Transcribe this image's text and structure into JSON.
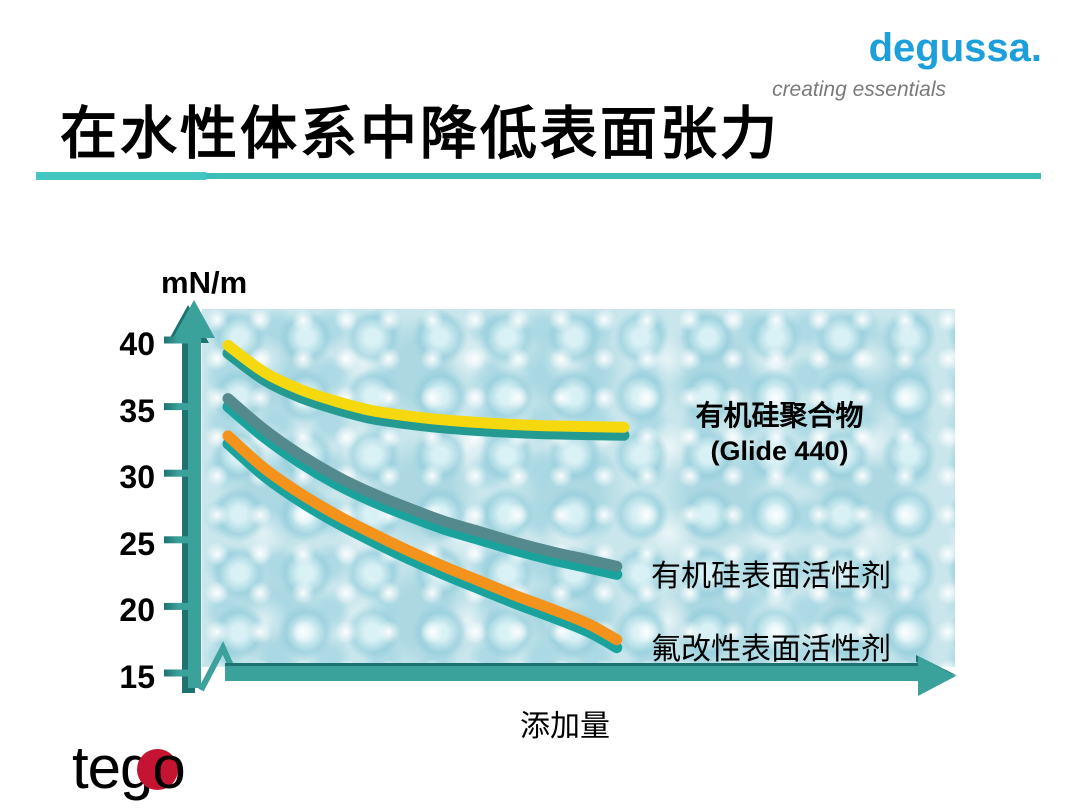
{
  "brand": {
    "logo": "degussa.",
    "tagline": "creating essentials"
  },
  "title": "在水性体系中降低表面张力",
  "chart_data": {
    "type": "line",
    "title": "",
    "ylabel": "mN/m",
    "xlabel": "添加量",
    "ylim": [
      15,
      42
    ],
    "y_ticks": [
      40,
      35,
      30,
      25,
      20,
      15
    ],
    "grid": false,
    "x_axis": {
      "label": "添加量",
      "tick_labels": [],
      "axis_break": true,
      "arrow": true
    },
    "series": [
      {
        "name": "有机硅聚合物 (Glide 440)",
        "color": "#f6d80e",
        "shadow": "#249a91",
        "x": [
          0,
          0.05,
          0.1,
          0.15,
          0.2,
          0.25,
          0.3,
          0.35,
          0.4,
          0.45,
          0.5,
          0.55
        ],
        "y": [
          39.6,
          37.6,
          36.3,
          35.4,
          34.7,
          34.3,
          34.0,
          33.8,
          33.65,
          33.55,
          33.5,
          33.45
        ]
      },
      {
        "name": "有机硅表面活性剂",
        "color": "#54898e",
        "shadow": "#1aa39c",
        "x": [
          0,
          0.05,
          0.1,
          0.15,
          0.2,
          0.25,
          0.3,
          0.35,
          0.4,
          0.45,
          0.5,
          0.54
        ],
        "y": [
          35.6,
          33.3,
          31.4,
          29.8,
          28.5,
          27.4,
          26.4,
          25.6,
          24.8,
          24.1,
          23.5,
          23.0
        ]
      },
      {
        "name": "氟改性表面活性剂",
        "color": "#f4931c",
        "shadow": "#1aa39c",
        "x": [
          0,
          0.05,
          0.1,
          0.15,
          0.2,
          0.25,
          0.3,
          0.35,
          0.4,
          0.45,
          0.5,
          0.54
        ],
        "y": [
          32.8,
          30.4,
          28.5,
          26.9,
          25.5,
          24.2,
          23.0,
          21.9,
          20.8,
          19.8,
          18.7,
          17.5
        ]
      }
    ],
    "annotations": [
      {
        "line1": "有机硅聚合物",
        "line2": "(Glide 440)"
      },
      {
        "text": "有机硅表面活性剂"
      },
      {
        "text": "氟改性表面活性剂"
      }
    ]
  },
  "footer_logo": {
    "prefix": "teg",
    "o": "o"
  },
  "colors": {
    "axis_teal": "#3ba19b",
    "axis_dark_teal": "#1d7370",
    "underline_teal": "#41c4bf",
    "degussa_blue": "#1c9fdb",
    "tagline_gray": "#7a7a7a",
    "tego_red": "#c41431"
  }
}
